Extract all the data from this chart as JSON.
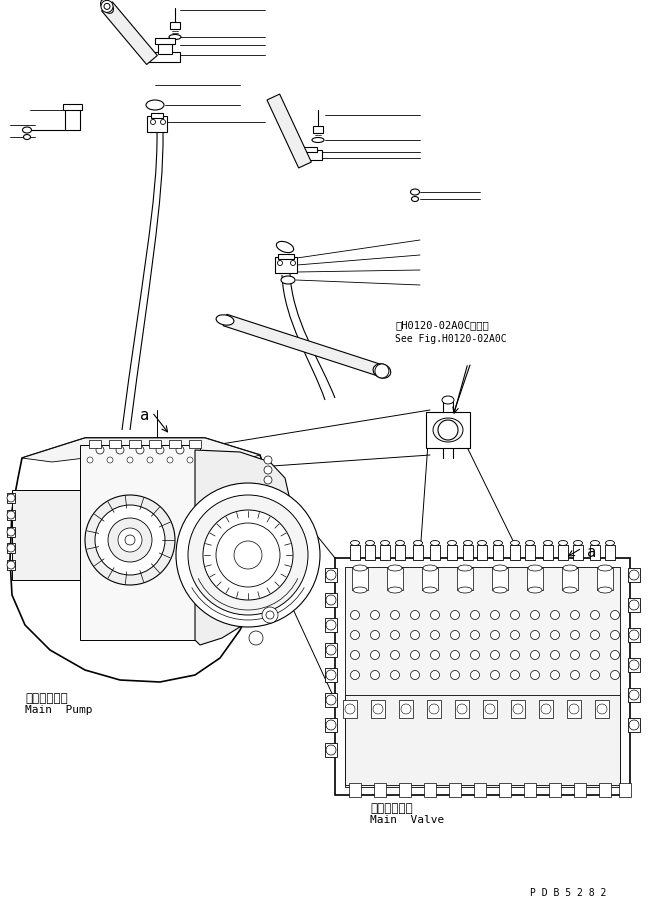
{
  "bg_color": "#ffffff",
  "line_color": "#000000",
  "fig_width": 6.5,
  "fig_height": 9.07,
  "dpi": 100,
  "part_code": "P D B 5 2 8 2",
  "ref_text_jp": "第H0120-02A0C図参照",
  "ref_text_en": "See Fig.H0120-02A0C",
  "main_pump_jp": "メインポンプ",
  "main_pump_en": "Main  Pump",
  "main_valve_jp": "メインバルブ",
  "main_valve_en": "Main  Valve"
}
